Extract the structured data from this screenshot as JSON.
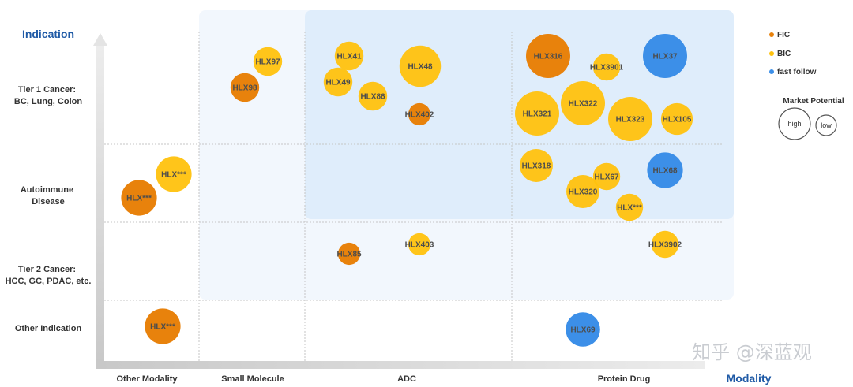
{
  "chart_data": {
    "type": "scatter",
    "x_axis_title": "Modality",
    "y_axis_title": "Indication",
    "x_categories": [
      "Other Modality",
      "Small Molecule",
      "ADC",
      "Protein Drug"
    ],
    "y_categories": [
      [
        "Tier 1 Cancer:",
        "BC, Lung, Colon"
      ],
      [
        "Autoimmune",
        "Disease"
      ],
      [
        "Tier 2 Cancer:",
        "HCC, GC, PDAC, etc."
      ],
      [
        "Other Indication"
      ]
    ],
    "legend": {
      "placement": "right",
      "types": [
        {
          "key": "FIC",
          "label": "FIC",
          "color": "#e8820c"
        },
        {
          "key": "BIC",
          "label": "BIC",
          "color": "#ffc20e"
        },
        {
          "key": "FF",
          "label": "fast follow",
          "color": "#3c8fe8"
        }
      ],
      "size_title": "Market Potential",
      "size_high": "high",
      "size_low": "low"
    },
    "points": [
      {
        "label": "HLX97",
        "col": 1,
        "y": 0.85,
        "type": "BIC",
        "potential": 0.7
      },
      {
        "label": "HLX98",
        "col": 1,
        "y": 0.62,
        "type": "FIC",
        "potential": 0.7
      },
      {
        "label": "HLX41",
        "col": 2,
        "y": 0.32,
        "type": "BIC",
        "potential": 0.7
      },
      {
        "label": "HLX49",
        "col": 2,
        "y": 0.62,
        "type": "BIC",
        "potential": 0.7
      },
      {
        "label": "HLX86",
        "col": 2,
        "y": 0.76,
        "type": "BIC",
        "potential": 0.7
      },
      {
        "label": "HLX48",
        "col": 2,
        "y": 0.95,
        "type": "BIC",
        "potential": 1.7
      },
      {
        "label": "HLX402",
        "col": 2,
        "y": 0.99,
        "type": "FIC",
        "potential": 0.35
      },
      {
        "label": "HLX403",
        "col": 2,
        "y": 0.99,
        "type": "BIC",
        "potential": 0.35
      },
      {
        "label": "HLX85",
        "col": 2,
        "y": 0.32,
        "type": "FIC",
        "potential": 0.35
      },
      {
        "label": "HLX316",
        "col": 3,
        "y": 0.86,
        "type": "FIC",
        "potential": 2.0
      },
      {
        "label": "HLX3901",
        "col": 3,
        "y": 0.6,
        "type": "BIC",
        "potential": 0.6
      },
      {
        "label": "HLX37",
        "col": 3,
        "y": 0.62,
        "type": "FF",
        "potential": 2.0
      },
      {
        "label": "HLX321",
        "col": 3,
        "y": 0.58,
        "type": "BIC",
        "potential": 2.0
      },
      {
        "label": "HLX322",
        "col": 3,
        "y": 0.72,
        "type": "BIC",
        "potential": 2.0
      },
      {
        "label": "HLX323",
        "col": 3,
        "y": 0.66,
        "type": "BIC",
        "potential": 2.0
      },
      {
        "label": "HLX105",
        "col": 3,
        "y": 0.7,
        "type": "BIC",
        "potential": 0.9
      },
      {
        "label": "HLX318",
        "col": 3,
        "y": 0.8,
        "type": "BIC",
        "potential": 1.0
      },
      {
        "label": "HLX67",
        "col": 3,
        "y": 0.55,
        "type": "BIC",
        "potential": 0.6
      },
      {
        "label": "HLX320",
        "col": 3,
        "y": 0.7,
        "type": "BIC",
        "potential": 1.0
      },
      {
        "label": "HLX68",
        "col": 3,
        "y": 0.45,
        "type": "FF",
        "potential": 1.2
      },
      {
        "label": "HLX***",
        "col": 3,
        "y": 0.6,
        "type": "BIC",
        "potential": 0.6
      },
      {
        "label": "HLX3902",
        "col": 3,
        "y": 0.4,
        "type": "BIC",
        "potential": 0.6
      },
      {
        "label": "HLX69",
        "col": 3,
        "y": 0.6,
        "type": "FF",
        "potential": 1.1
      },
      {
        "label": "HLX***",
        "col": 0,
        "y": 0.7,
        "type": "BIC",
        "potential": 1.2
      },
      {
        "label": "HLX***",
        "col": 0,
        "y": 0.7,
        "type": "FIC",
        "potential": 1.2
      },
      {
        "label": "HLX***",
        "col": 0,
        "y": 0.5,
        "type": "FIC",
        "potential": 1.2
      }
    ]
  },
  "watermark": "知乎 @深蓝观"
}
